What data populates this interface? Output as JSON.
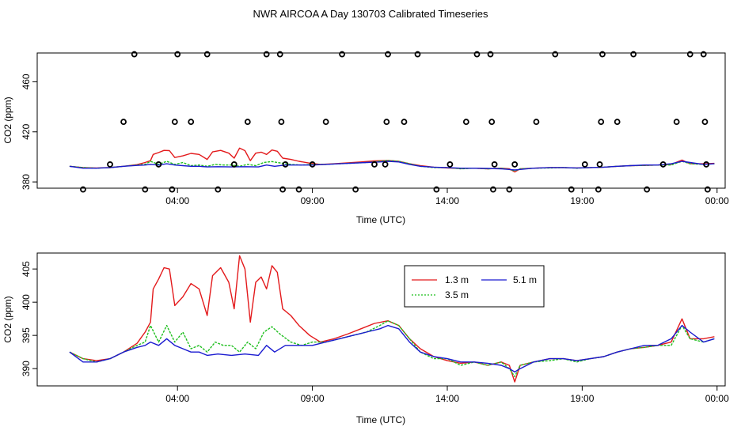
{
  "title": "NWR AIRCOA A  Day 130703  Calibrated Timeseries",
  "chart_data": [
    {
      "type": "scatter+line",
      "title": "",
      "xlabel": "Time (UTC)",
      "ylabel": "CO2 (ppm)",
      "xlim": [
        -1.2,
        24.3
      ],
      "ylim": [
        375,
        483
      ],
      "xticks": [
        {
          "value": 4,
          "label": "04:00"
        },
        {
          "value": 9,
          "label": "09:00"
        },
        {
          "value": 14,
          "label": "14:00"
        },
        {
          "value": 19,
          "label": "19:00"
        },
        {
          "value": 24,
          "label": "00:00"
        }
      ],
      "yticks": [
        {
          "value": 380,
          "label": "380"
        },
        {
          "value": 420,
          "label": "420"
        },
        {
          "value": 460,
          "label": "460"
        }
      ],
      "calibration_points": [
        [
          0.5,
          374
        ],
        [
          1.5,
          394
        ],
        [
          2.0,
          428
        ],
        [
          2.4,
          482
        ],
        [
          2.8,
          374
        ],
        [
          3.3,
          394
        ],
        [
          3.8,
          374
        ],
        [
          3.9,
          428
        ],
        [
          4.0,
          482
        ],
        [
          4.5,
          428
        ],
        [
          5.1,
          482
        ],
        [
          5.5,
          374
        ],
        [
          6.1,
          394
        ],
        [
          6.6,
          428
        ],
        [
          7.3,
          482
        ],
        [
          7.8,
          482
        ],
        [
          7.85,
          428
        ],
        [
          7.9,
          374
        ],
        [
          8.0,
          394
        ],
        [
          8.5,
          374
        ],
        [
          9.0,
          394
        ],
        [
          9.5,
          428
        ],
        [
          10.1,
          482
        ],
        [
          10.6,
          374
        ],
        [
          11.3,
          394
        ],
        [
          11.7,
          394
        ],
        [
          11.75,
          428
        ],
        [
          11.8,
          482
        ],
        [
          12.4,
          428
        ],
        [
          12.9,
          482
        ],
        [
          13.6,
          374
        ],
        [
          14.1,
          394
        ],
        [
          14.7,
          428
        ],
        [
          15.1,
          482
        ],
        [
          15.6,
          482
        ],
        [
          15.65,
          428
        ],
        [
          15.7,
          374
        ],
        [
          15.75,
          394
        ],
        [
          16.3,
          374
        ],
        [
          16.5,
          394
        ],
        [
          17.3,
          428
        ],
        [
          18.0,
          482
        ],
        [
          18.6,
          374
        ],
        [
          19.1,
          394
        ],
        [
          19.6,
          374
        ],
        [
          19.65,
          394
        ],
        [
          19.7,
          428
        ],
        [
          19.75,
          482
        ],
        [
          20.3,
          428
        ],
        [
          20.9,
          482
        ],
        [
          21.4,
          374
        ],
        [
          22.0,
          394
        ],
        [
          22.5,
          428
        ],
        [
          23.0,
          482
        ],
        [
          23.5,
          482
        ],
        [
          23.55,
          428
        ],
        [
          23.6,
          394
        ],
        [
          23.65,
          374
        ]
      ]
    },
    {
      "type": "line",
      "title": "",
      "xlabel": "Time (UTC)",
      "ylabel": "CO2 (ppm)",
      "xlim": [
        -1.2,
        24.3
      ],
      "ylim": [
        387.4,
        407.4
      ],
      "xticks": [
        {
          "value": 4,
          "label": "04:00"
        },
        {
          "value": 9,
          "label": "09:00"
        },
        {
          "value": 14,
          "label": "14:00"
        },
        {
          "value": 19,
          "label": "19:00"
        },
        {
          "value": 24,
          "label": "00:00"
        }
      ],
      "yticks": [
        {
          "value": 390,
          "label": "390"
        },
        {
          "value": 395,
          "label": "395"
        },
        {
          "value": 400,
          "label": "400"
        },
        {
          "value": 405,
          "label": "405"
        }
      ],
      "legend": {
        "position": "top-center"
      },
      "series": [
        {
          "name": "1.3 m",
          "color": "#e31a1c",
          "points": [
            [
              0,
              392.5
            ],
            [
              0.5,
              391.5
            ],
            [
              1,
              391.2
            ],
            [
              1.5,
              391.5
            ],
            [
              2,
              392.5
            ],
            [
              2.5,
              393.8
            ],
            [
              2.8,
              395.5
            ],
            [
              3.0,
              397.0
            ],
            [
              3.1,
              402.0
            ],
            [
              3.3,
              403.5
            ],
            [
              3.5,
              405.2
            ],
            [
              3.7,
              405.0
            ],
            [
              3.9,
              399.5
            ],
            [
              4.2,
              400.8
            ],
            [
              4.5,
              402.8
            ],
            [
              4.8,
              402.0
            ],
            [
              5.1,
              398.0
            ],
            [
              5.3,
              404.0
            ],
            [
              5.6,
              405.2
            ],
            [
              5.9,
              403.0
            ],
            [
              6.1,
              399.0
            ],
            [
              6.3,
              407.0
            ],
            [
              6.5,
              405.0
            ],
            [
              6.7,
              397.0
            ],
            [
              6.9,
              403.0
            ],
            [
              7.1,
              403.8
            ],
            [
              7.3,
              402.0
            ],
            [
              7.5,
              405.5
            ],
            [
              7.7,
              404.5
            ],
            [
              7.9,
              399.0
            ],
            [
              8.2,
              398.0
            ],
            [
              8.5,
              396.5
            ],
            [
              8.9,
              395.0
            ],
            [
              9.3,
              394.0
            ],
            [
              9.8,
              394.5
            ],
            [
              10.3,
              395.2
            ],
            [
              10.8,
              396.0
            ],
            [
              11.3,
              396.8
            ],
            [
              11.8,
              397.2
            ],
            [
              12.2,
              396.5
            ],
            [
              12.6,
              394.5
            ],
            [
              13.0,
              393.0
            ],
            [
              13.5,
              391.8
            ],
            [
              14.0,
              391.2
            ],
            [
              14.5,
              390.8
            ],
            [
              15.0,
              391.0
            ],
            [
              15.5,
              390.5
            ],
            [
              16.0,
              391.0
            ],
            [
              16.3,
              390.5
            ],
            [
              16.5,
              388.0
            ],
            [
              16.7,
              390.5
            ],
            [
              17.2,
              391.0
            ],
            [
              17.8,
              391.5
            ],
            [
              18.3,
              391.5
            ],
            [
              18.8,
              391.2
            ],
            [
              19.3,
              391.5
            ],
            [
              19.8,
              391.8
            ],
            [
              20.3,
              392.5
            ],
            [
              20.8,
              393.0
            ],
            [
              21.3,
              393.2
            ],
            [
              21.8,
              393.5
            ],
            [
              22.3,
              394.0
            ],
            [
              22.7,
              397.5
            ],
            [
              23.0,
              394.5
            ],
            [
              23.5,
              394.5
            ],
            [
              23.9,
              394.8
            ]
          ]
        },
        {
          "name": "3.5 m",
          "color": "#1fbf1f",
          "points": [
            [
              0,
              392.5
            ],
            [
              0.5,
              391.5
            ],
            [
              1,
              391.0
            ],
            [
              1.5,
              391.5
            ],
            [
              2,
              392.5
            ],
            [
              2.5,
              393.5
            ],
            [
              2.8,
              394.0
            ],
            [
              3.0,
              396.5
            ],
            [
              3.3,
              394.0
            ],
            [
              3.6,
              396.5
            ],
            [
              3.9,
              394.0
            ],
            [
              4.2,
              395.5
            ],
            [
              4.5,
              393.0
            ],
            [
              4.8,
              393.5
            ],
            [
              5.1,
              392.5
            ],
            [
              5.4,
              394.0
            ],
            [
              5.7,
              393.5
            ],
            [
              6.0,
              393.5
            ],
            [
              6.3,
              392.5
            ],
            [
              6.6,
              394.0
            ],
            [
              6.9,
              393.0
            ],
            [
              7.2,
              395.5
            ],
            [
              7.5,
              396.3
            ],
            [
              7.8,
              395.2
            ],
            [
              8.2,
              394.0
            ],
            [
              8.6,
              393.5
            ],
            [
              9.0,
              394.0
            ],
            [
              9.5,
              394.0
            ],
            [
              10.0,
              394.5
            ],
            [
              10.5,
              395.0
            ],
            [
              11.0,
              395.5
            ],
            [
              11.5,
              396.5
            ],
            [
              11.8,
              397.2
            ],
            [
              12.2,
              396.5
            ],
            [
              12.6,
              394.5
            ],
            [
              13.0,
              392.5
            ],
            [
              13.5,
              391.5
            ],
            [
              14.0,
              391.5
            ],
            [
              14.5,
              390.5
            ],
            [
              15.0,
              391.0
            ],
            [
              15.5,
              390.5
            ],
            [
              16.0,
              391.0
            ],
            [
              16.3,
              390.0
            ],
            [
              16.5,
              388.8
            ],
            [
              16.7,
              390.5
            ],
            [
              17.2,
              391.0
            ],
            [
              17.8,
              391.2
            ],
            [
              18.3,
              391.5
            ],
            [
              18.8,
              391.0
            ],
            [
              19.3,
              391.5
            ],
            [
              19.8,
              391.8
            ],
            [
              20.3,
              392.5
            ],
            [
              20.8,
              393.0
            ],
            [
              21.3,
              393.2
            ],
            [
              21.8,
              393.5
            ],
            [
              22.3,
              393.5
            ],
            [
              22.7,
              396.5
            ],
            [
              23.0,
              394.5
            ],
            [
              23.5,
              394.0
            ],
            [
              23.9,
              394.5
            ]
          ]
        },
        {
          "name": "5.1 m",
          "color": "#1a1ad0",
          "points": [
            [
              0,
              392.5
            ],
            [
              0.5,
              391.0
            ],
            [
              1,
              391.0
            ],
            [
              1.5,
              391.5
            ],
            [
              2,
              392.5
            ],
            [
              2.5,
              393.2
            ],
            [
              2.8,
              393.5
            ],
            [
              3.0,
              394.0
            ],
            [
              3.3,
              393.5
            ],
            [
              3.6,
              394.5
            ],
            [
              3.9,
              393.5
            ],
            [
              4.2,
              393.0
            ],
            [
              4.5,
              392.5
            ],
            [
              4.8,
              392.5
            ],
            [
              5.1,
              392.0
            ],
            [
              5.5,
              392.2
            ],
            [
              6.0,
              392.0
            ],
            [
              6.5,
              392.2
            ],
            [
              7.0,
              392.0
            ],
            [
              7.3,
              393.5
            ],
            [
              7.6,
              392.5
            ],
            [
              8.0,
              393.5
            ],
            [
              8.5,
              393.5
            ],
            [
              9.0,
              393.5
            ],
            [
              9.5,
              394.0
            ],
            [
              10.0,
              394.5
            ],
            [
              10.5,
              395.0
            ],
            [
              11.0,
              395.5
            ],
            [
              11.5,
              396.0
            ],
            [
              11.8,
              396.5
            ],
            [
              12.2,
              396.0
            ],
            [
              12.6,
              394.0
            ],
            [
              13.0,
              392.5
            ],
            [
              13.5,
              391.8
            ],
            [
              14.0,
              391.5
            ],
            [
              14.5,
              391.0
            ],
            [
              15.0,
              391.0
            ],
            [
              15.5,
              390.8
            ],
            [
              16.0,
              390.5
            ],
            [
              16.3,
              390.0
            ],
            [
              16.5,
              389.5
            ],
            [
              16.7,
              390.0
            ],
            [
              17.2,
              391.0
            ],
            [
              17.8,
              391.5
            ],
            [
              18.3,
              391.5
            ],
            [
              18.8,
              391.2
            ],
            [
              19.3,
              391.5
            ],
            [
              19.8,
              391.8
            ],
            [
              20.3,
              392.5
            ],
            [
              20.8,
              393.0
            ],
            [
              21.3,
              393.5
            ],
            [
              21.8,
              393.5
            ],
            [
              22.3,
              394.5
            ],
            [
              22.7,
              396.5
            ],
            [
              23.0,
              395.5
            ],
            [
              23.5,
              394.0
            ],
            [
              23.9,
              394.5
            ]
          ]
        }
      ]
    }
  ]
}
